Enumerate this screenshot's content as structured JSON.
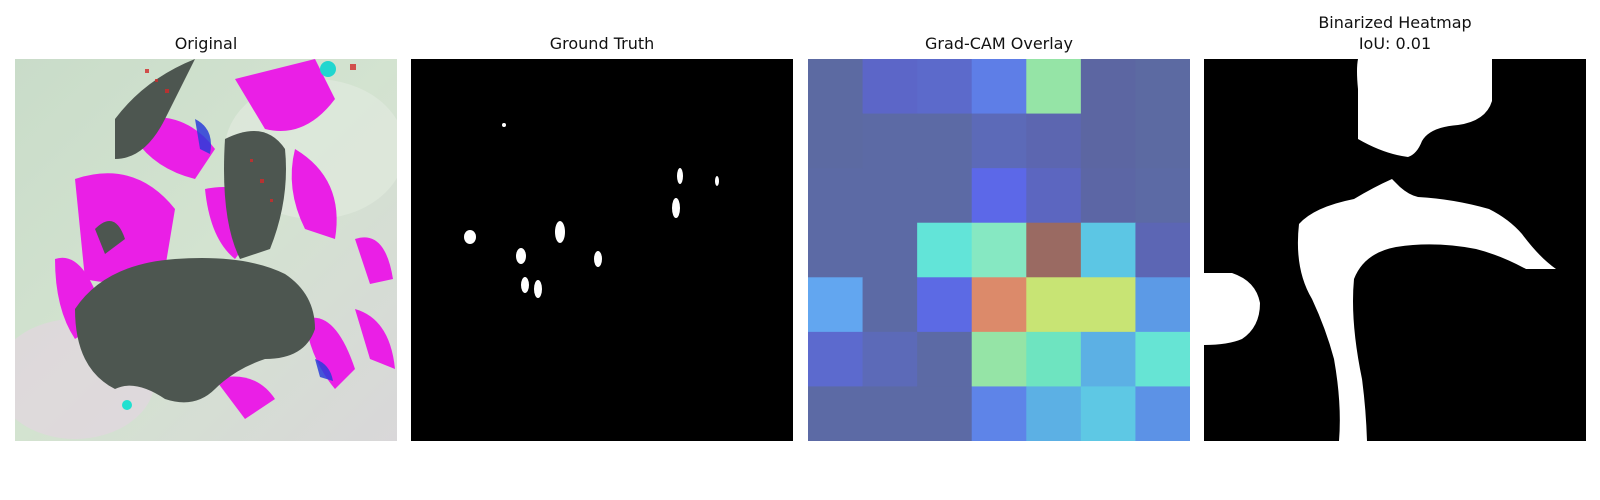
{
  "panels": [
    {
      "title": "Original",
      "content": "leaf photo with pink/magenta highlighted regions"
    },
    {
      "title": "Ground Truth"
    },
    {
      "title": "Grad-CAM Overlay"
    },
    {
      "title_line1": "Binarized Heatmap",
      "title_line2": "IoU: 0.01"
    }
  ],
  "gradcam_grid": [
    [
      "#5c6aa2",
      "#5c66c8",
      "#5c6acb",
      "#5e7ee7",
      "#95e4a6",
      "#5c66a2",
      "#5c6aa2"
    ],
    [
      "#5c6aa2",
      "#5c6aa5",
      "#5c6aa5",
      "#5c6ab8",
      "#5c66b0",
      "#5c66a2",
      "#5c6aa2"
    ],
    [
      "#5c6aa5",
      "#5c6aa5",
      "#5c6aa5",
      "#5c68e8",
      "#5c66c0",
      "#5c66a5",
      "#5c6aa5"
    ],
    [
      "#5c6aa5",
      "#5c6aa5",
      "#62e4d8",
      "#86e8c2",
      "#9a6a62",
      "#5cc6e4",
      "#5c66b4"
    ],
    [
      "#62a6f0",
      "#5c6aa5",
      "#5c6ae4",
      "#dc8a6a",
      "#c8e474",
      "#c8e474",
      "#5c9ae6"
    ],
    [
      "#5c6ace",
      "#5c6ab8",
      "#5c6aa5",
      "#95e4a6",
      "#6ee4c0",
      "#5cb0e4",
      "#66e4d4"
    ],
    [
      "#5c6aa5",
      "#5c6aa5",
      "#5c6aa5",
      "#5e84e8",
      "#5cb0e4",
      "#5ec8e4",
      "#5c92e6"
    ]
  ]
}
